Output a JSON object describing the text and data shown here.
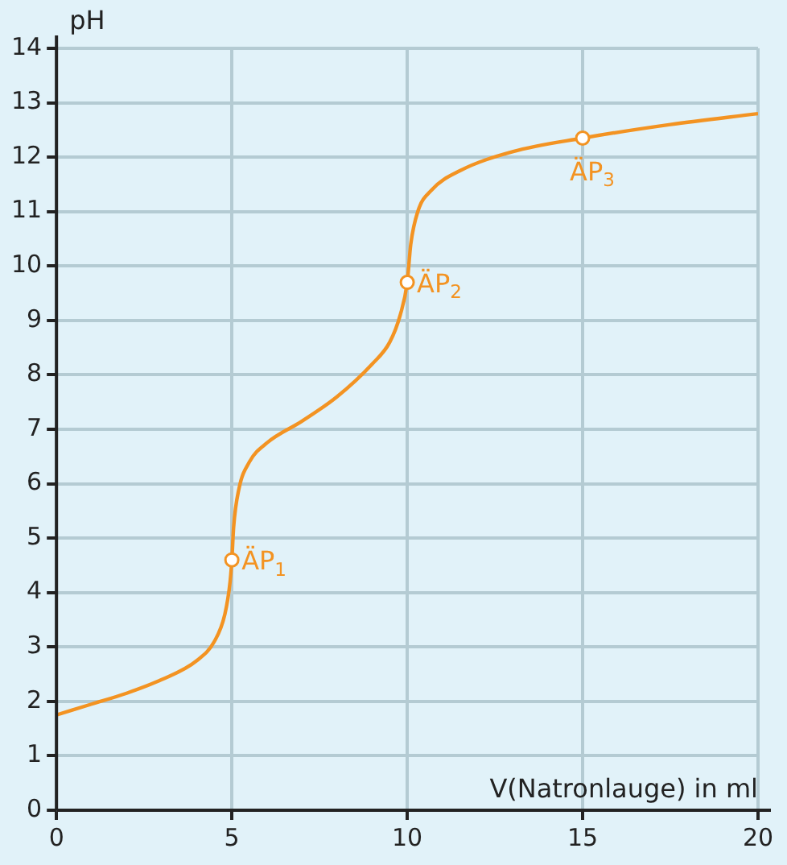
{
  "chart_data": {
    "type": "line",
    "xlabel": "V(Natronlauge) in ml",
    "ylabel": "pH",
    "xlim": [
      0,
      20
    ],
    "xticks": [
      0,
      5,
      10,
      15,
      20
    ],
    "ylim": [
      0,
      14
    ],
    "yticks": [
      0,
      1,
      2,
      3,
      4,
      5,
      6,
      7,
      8,
      9,
      10,
      11,
      12,
      13,
      14
    ],
    "grid": true,
    "legend": false,
    "line_style": "solid",
    "series": [
      {
        "type": "line",
        "color": "#f39322",
        "marker": "none",
        "x": [
          0,
          1,
          2,
          3,
          4,
          4.5,
          4.8,
          4.95,
          5,
          5.05,
          5.2,
          5.5,
          6,
          7,
          8,
          9,
          9.5,
          9.8,
          10,
          10.1,
          10.3,
          10.7,
          11.5,
          13,
          15,
          17.5,
          20
        ],
        "values": [
          1.75,
          1.95,
          2.15,
          2.4,
          2.75,
          3.1,
          3.6,
          4.2,
          4.6,
          5.2,
          5.9,
          6.4,
          6.75,
          7.15,
          7.6,
          8.2,
          8.6,
          9.1,
          9.7,
          10.4,
          11,
          11.4,
          11.75,
          12.1,
          12.35,
          12.6,
          12.8
        ]
      },
      {
        "type": "scatter",
        "color": "#f39322",
        "marker": "circle",
        "x": [
          5,
          10,
          15
        ],
        "values": [
          4.6,
          9.7,
          12.35
        ]
      }
    ],
    "annotations": [
      {
        "text": "ÄP$_{1}$",
        "x": 5,
        "y": 4.6
      },
      {
        "text": "ÄP$_{2}$",
        "x": 10,
        "y": 9.7
      },
      {
        "text": "ÄP$_{3}$",
        "x": 15,
        "y": 12.35
      }
    ]
  }
}
